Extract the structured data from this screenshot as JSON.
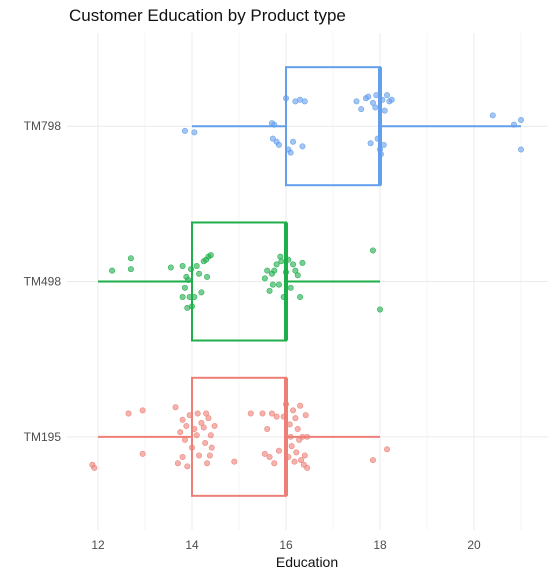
{
  "chart_data": {
    "type": "boxplot",
    "title": "Customer Education by Product type",
    "xlabel": "Education",
    "ylabel": "",
    "xlim": [
      11.7,
      21.3
    ],
    "x_ticks": [
      12,
      14,
      16,
      18,
      20
    ],
    "categories": [
      "TM195",
      "TM498",
      "TM798"
    ],
    "grid": true,
    "legend": "none",
    "series": [
      {
        "category": "TM195",
        "color": "#ED7F77",
        "box": {
          "min": 12,
          "q1": 14,
          "median": 16,
          "q3": 16,
          "max": 18
        },
        "points": [
          {
            "x": 11.88,
            "y": -0.18
          },
          {
            "x": 11.92,
            "y": -0.2
          },
          {
            "x": 12.65,
            "y": 0.15
          },
          {
            "x": 12.95,
            "y": 0.17
          },
          {
            "x": 12.95,
            "y": -0.11
          },
          {
            "x": 13.65,
            "y": 0.19
          },
          {
            "x": 13.7,
            "y": -0.17
          },
          {
            "x": 13.75,
            "y": 0.03
          },
          {
            "x": 13.8,
            "y": -0.13
          },
          {
            "x": 13.8,
            "y": 0.11
          },
          {
            "x": 13.85,
            "y": -0.02
          },
          {
            "x": 13.88,
            "y": 0.07
          },
          {
            "x": 13.9,
            "y": -0.19
          },
          {
            "x": 13.95,
            "y": 0.14
          },
          {
            "x": 14.0,
            "y": -0.07
          },
          {
            "x": 14.05,
            "y": 0.05
          },
          {
            "x": 14.1,
            "y": 0.01
          },
          {
            "x": 14.12,
            "y": 0.15
          },
          {
            "x": 14.15,
            "y": -0.12
          },
          {
            "x": 14.2,
            "y": 0.09
          },
          {
            "x": 14.25,
            "y": 0.06
          },
          {
            "x": 14.28,
            "y": -0.04
          },
          {
            "x": 14.3,
            "y": 0.15
          },
          {
            "x": 14.32,
            "y": -0.17
          },
          {
            "x": 14.35,
            "y": 0.12
          },
          {
            "x": 14.38,
            "y": -0.12
          },
          {
            "x": 14.4,
            "y": 0.01
          },
          {
            "x": 14.42,
            "y": -0.07
          },
          {
            "x": 14.48,
            "y": 0.07
          },
          {
            "x": 14.9,
            "y": -0.16
          },
          {
            "x": 15.25,
            "y": 0.15
          },
          {
            "x": 15.5,
            "y": 0.15
          },
          {
            "x": 15.55,
            "y": -0.11
          },
          {
            "x": 15.6,
            "y": 0.05
          },
          {
            "x": 15.65,
            "y": -0.13
          },
          {
            "x": 15.7,
            "y": 0.15
          },
          {
            "x": 15.75,
            "y": -0.17
          },
          {
            "x": 15.8,
            "y": 0.13
          },
          {
            "x": 15.85,
            "y": -0.09
          },
          {
            "x": 15.95,
            "y": 0.13
          },
          {
            "x": 16.0,
            "y": 0.21
          },
          {
            "x": 16.05,
            "y": -0.13
          },
          {
            "x": 16.08,
            "y": 0.08
          },
          {
            "x": 16.1,
            "y": 0.0
          },
          {
            "x": 16.12,
            "y": -0.06
          },
          {
            "x": 16.15,
            "y": 0.17
          },
          {
            "x": 16.18,
            "y": -0.16
          },
          {
            "x": 16.2,
            "y": 0.12
          },
          {
            "x": 16.22,
            "y": -0.1
          },
          {
            "x": 16.25,
            "y": 0.05
          },
          {
            "x": 16.28,
            "y": -0.02
          },
          {
            "x": 16.3,
            "y": 0.2
          },
          {
            "x": 16.32,
            "y": -0.15
          },
          {
            "x": 16.35,
            "y": 0.0
          },
          {
            "x": 16.38,
            "y": -0.18
          },
          {
            "x": 16.4,
            "y": -0.12
          },
          {
            "x": 16.42,
            "y": 0.14
          },
          {
            "x": 16.45,
            "y": -0.2
          },
          {
            "x": 16.45,
            "y": 0.0
          },
          {
            "x": 17.85,
            "y": -0.15
          },
          {
            "x": 18.15,
            "y": -0.08
          }
        ]
      },
      {
        "category": "TM498",
        "color": "#1EAE4A",
        "box": {
          "min": 12,
          "q1": 14,
          "median": 16,
          "q3": 16,
          "max": 18
        },
        "points": [
          {
            "x": 12.3,
            "y": 0.07
          },
          {
            "x": 12.7,
            "y": 0.15
          },
          {
            "x": 12.7,
            "y": 0.08
          },
          {
            "x": 13.55,
            "y": 0.09
          },
          {
            "x": 13.8,
            "y": 0.1
          },
          {
            "x": 13.8,
            "y": -0.1
          },
          {
            "x": 13.85,
            "y": -0.04
          },
          {
            "x": 13.88,
            "y": 0.03
          },
          {
            "x": 13.9,
            "y": -0.17
          },
          {
            "x": 13.92,
            "y": 0.01
          },
          {
            "x": 13.95,
            "y": -0.1
          },
          {
            "x": 13.98,
            "y": 0.08
          },
          {
            "x": 14.0,
            "y": -0.16
          },
          {
            "x": 14.05,
            "y": -0.1
          },
          {
            "x": 14.1,
            "y": 0.1
          },
          {
            "x": 14.15,
            "y": 0.05
          },
          {
            "x": 14.2,
            "y": -0.07
          },
          {
            "x": 14.25,
            "y": 0.13
          },
          {
            "x": 14.3,
            "y": 0.14
          },
          {
            "x": 14.32,
            "y": 0.03
          },
          {
            "x": 14.35,
            "y": 0.16
          },
          {
            "x": 14.4,
            "y": 0.17
          },
          {
            "x": 15.55,
            "y": 0.02
          },
          {
            "x": 15.6,
            "y": 0.07
          },
          {
            "x": 15.65,
            "y": -0.06
          },
          {
            "x": 15.7,
            "y": 0.05
          },
          {
            "x": 15.72,
            "y": -0.02
          },
          {
            "x": 15.75,
            "y": 0.07
          },
          {
            "x": 15.8,
            "y": 0.11
          },
          {
            "x": 15.85,
            "y": -0.02
          },
          {
            "x": 15.88,
            "y": 0.16
          },
          {
            "x": 15.9,
            "y": 0.13
          },
          {
            "x": 15.95,
            "y": -0.1
          },
          {
            "x": 16.0,
            "y": 0.06
          },
          {
            "x": 16.05,
            "y": 0.14
          },
          {
            "x": 16.1,
            "y": -0.04
          },
          {
            "x": 16.15,
            "y": 0.11
          },
          {
            "x": 16.2,
            "y": 0.07
          },
          {
            "x": 16.25,
            "y": 0.04
          },
          {
            "x": 16.3,
            "y": -0.1
          },
          {
            "x": 16.35,
            "y": 0.12
          },
          {
            "x": 17.85,
            "y": 0.2
          },
          {
            "x": 18.0,
            "y": -0.18
          }
        ]
      },
      {
        "category": "TM798",
        "color": "#649FEC",
        "box": {
          "min": 14,
          "q1": 16,
          "median": 18,
          "q3": 18,
          "max": 21
        },
        "points": [
          {
            "x": 13.85,
            "y": -0.03
          },
          {
            "x": 14.05,
            "y": -0.04
          },
          {
            "x": 15.7,
            "y": 0.02
          },
          {
            "x": 15.72,
            "y": -0.08
          },
          {
            "x": 15.75,
            "y": 0.01
          },
          {
            "x": 15.8,
            "y": -0.1
          },
          {
            "x": 15.85,
            "y": -0.12
          },
          {
            "x": 16.0,
            "y": 0.18
          },
          {
            "x": 16.05,
            "y": -0.15
          },
          {
            "x": 16.1,
            "y": -0.17
          },
          {
            "x": 16.15,
            "y": -0.1
          },
          {
            "x": 16.2,
            "y": 0.16
          },
          {
            "x": 16.3,
            "y": 0.17
          },
          {
            "x": 16.35,
            "y": -0.13
          },
          {
            "x": 16.4,
            "y": 0.16
          },
          {
            "x": 17.5,
            "y": 0.16
          },
          {
            "x": 17.6,
            "y": 0.11
          },
          {
            "x": 17.7,
            "y": 0.18
          },
          {
            "x": 17.75,
            "y": 0.19
          },
          {
            "x": 17.8,
            "y": -0.11
          },
          {
            "x": 17.85,
            "y": 0.15
          },
          {
            "x": 17.9,
            "y": 0.12
          },
          {
            "x": 17.92,
            "y": 0.2
          },
          {
            "x": 17.95,
            "y": -0.08
          },
          {
            "x": 18.0,
            "y": -0.15
          },
          {
            "x": 18.02,
            "y": -0.18
          },
          {
            "x": 18.05,
            "y": 0.17
          },
          {
            "x": 18.08,
            "y": -0.12
          },
          {
            "x": 18.1,
            "y": 0.1
          },
          {
            "x": 18.15,
            "y": 0.2
          },
          {
            "x": 18.2,
            "y": 0.16
          },
          {
            "x": 18.25,
            "y": 0.17
          },
          {
            "x": 20.4,
            "y": 0.07
          },
          {
            "x": 20.85,
            "y": 0.01
          },
          {
            "x": 21.0,
            "y": 0.04
          },
          {
            "x": 21.0,
            "y": -0.15
          }
        ]
      }
    ]
  }
}
